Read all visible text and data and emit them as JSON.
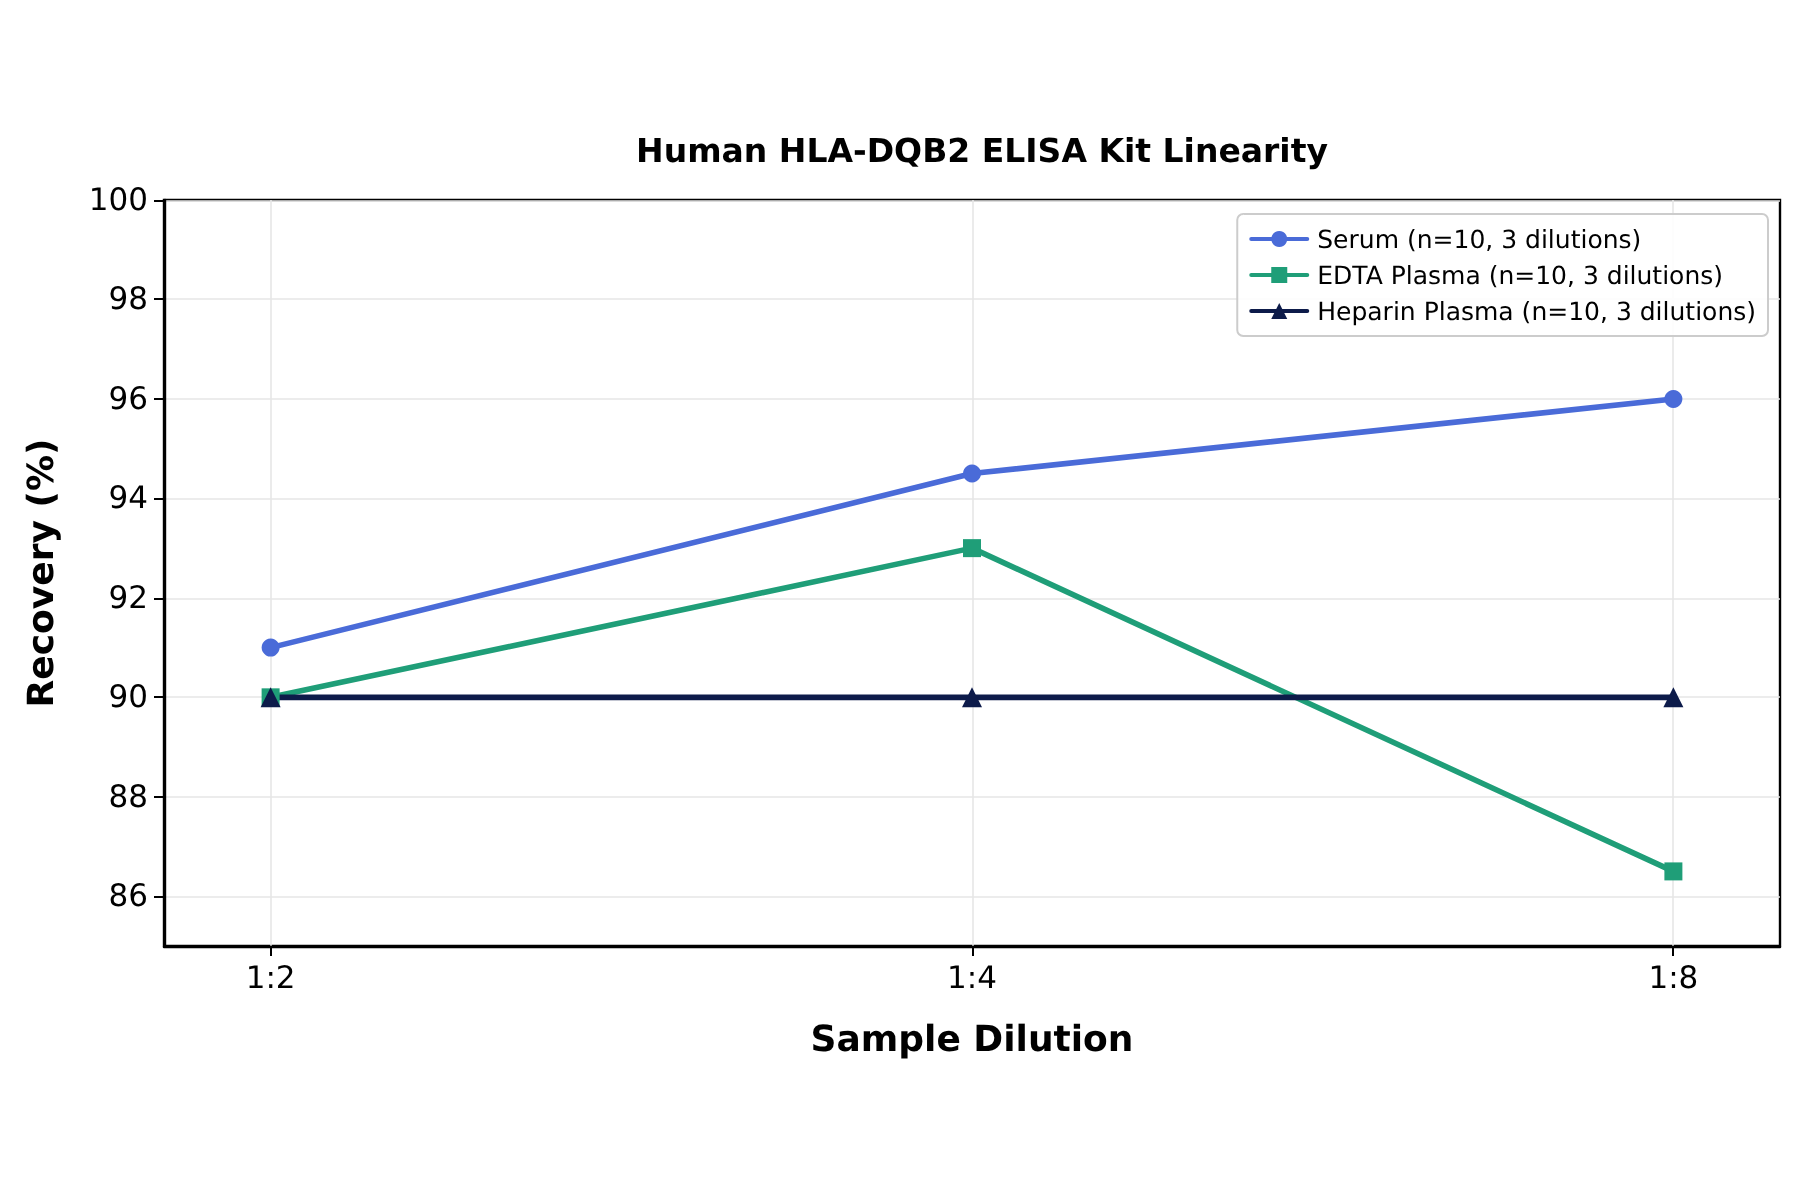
{
  "chart_data": {
    "type": "line",
    "title": "Human HLA-DQB2 ELISA Kit Linearity",
    "xlabel": "Sample Dilution",
    "ylabel": "Recovery (%)",
    "categories": [
      "1:2",
      "1:4",
      "1:8"
    ],
    "series": [
      {
        "name": "Serum (n=10, 3 dilutions)",
        "color": "#4a6bd8",
        "values": [
          91,
          94.5,
          96
        ],
        "marker": "circle"
      },
      {
        "name": "EDTA Plasma (n=10, 3 dilutions)",
        "color": "#1f9e78",
        "values": [
          90,
          93,
          86.5
        ],
        "marker": "square"
      },
      {
        "name": "Heparin Plasma (n=10, 3 dilutions)",
        "color": "#0d1b4a",
        "values": [
          90,
          90,
          90
        ],
        "marker": "triangle"
      }
    ],
    "ylim": [
      85,
      100
    ],
    "yticks": [
      86,
      88,
      90,
      92,
      94,
      96,
      98,
      100
    ],
    "grid": true,
    "legend": "top right",
    "line_style": "solid"
  }
}
